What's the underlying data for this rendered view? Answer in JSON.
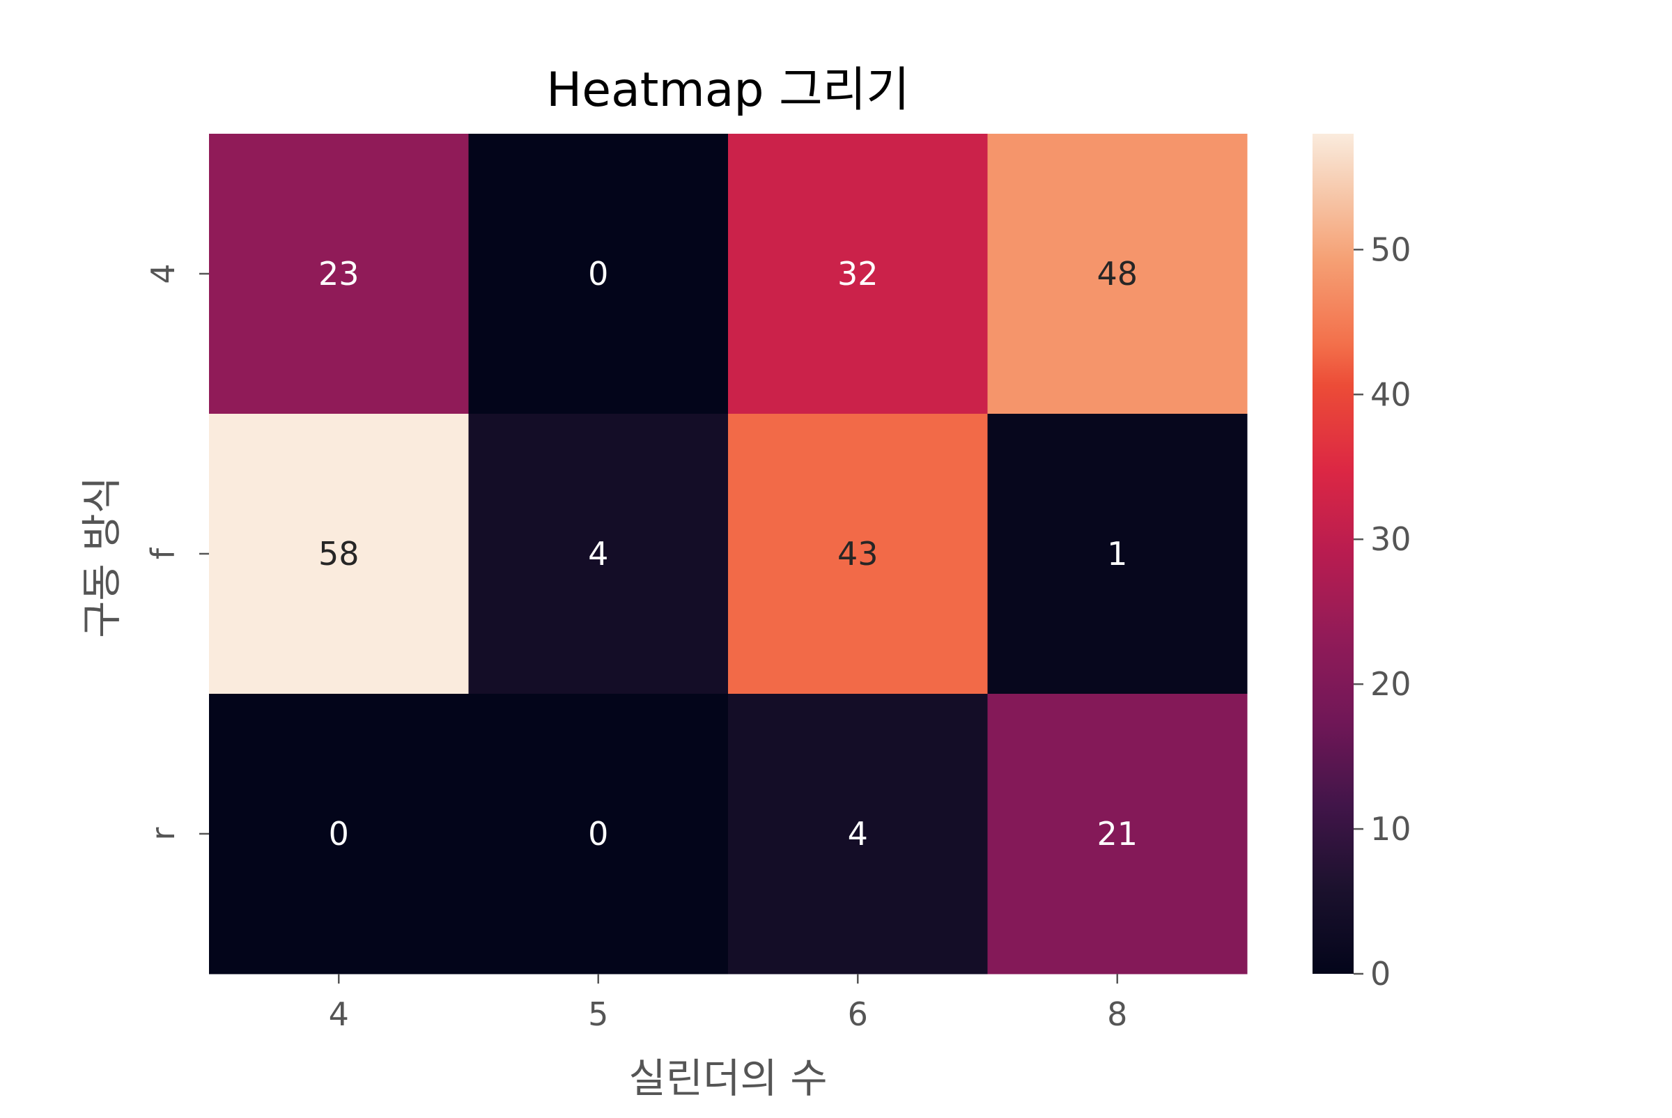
{
  "chart_data": {
    "type": "heatmap",
    "title": "Heatmap 그리기",
    "xlabel": "실린더의 수",
    "ylabel": "구동 방식",
    "x_categories": [
      "4",
      "5",
      "6",
      "8"
    ],
    "y_categories": [
      "4",
      "f",
      "r"
    ],
    "values": [
      [
        23,
        0,
        32,
        48
      ],
      [
        58,
        4,
        43,
        1
      ],
      [
        0,
        0,
        4,
        21
      ]
    ],
    "colorbar": {
      "colormap": "rocket",
      "vmin": 0,
      "vmax": 58,
      "ticks": [
        0,
        10,
        20,
        30,
        40,
        50
      ]
    },
    "annotations": true
  }
}
